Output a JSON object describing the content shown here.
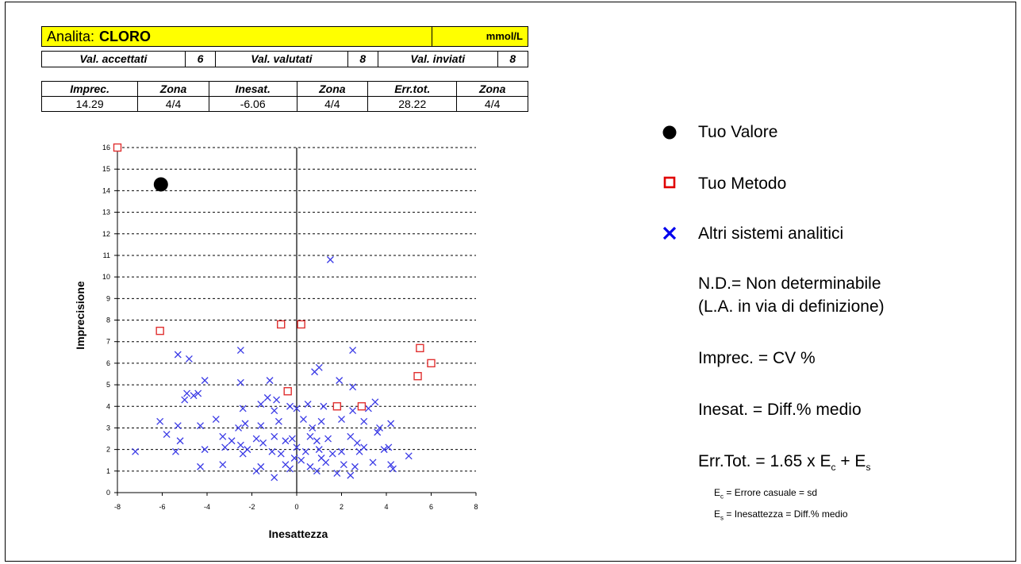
{
  "header": {
    "analyte_label": "Analita:",
    "analyte_name": "CLORO",
    "unit": "mmol/L",
    "counts": [
      {
        "label": "Val. accettati",
        "value": "6"
      },
      {
        "label": "Val. valutati",
        "value": "8"
      },
      {
        "label": "Val. inviati",
        "value": "8"
      }
    ],
    "metrics": {
      "headers": [
        "Imprec.",
        "Zona",
        "Inesat.",
        "Zona",
        "Err.tot.",
        "Zona"
      ],
      "values": [
        "14.29",
        "4/4",
        "-6.06",
        "4/4",
        "28.22",
        "4/4"
      ]
    }
  },
  "legend": {
    "your_value": "Tuo Valore",
    "your_method": "Tuo Metodo",
    "other_systems": "Altri sistemi analitici",
    "nd_line1": "N.D.= Non determinabile",
    "nd_line2": "(L.A. in via di definizione)",
    "imprec_def": "Imprec. = CV %",
    "inesat_def": "Inesat. = Diff.% medio",
    "errtot_prefix": "Err.Tot. = 1.65 x E",
    "errtot_sub1": "c",
    "errtot_mid": " + E",
    "errtot_sub2": "s",
    "ec_prefix": "E",
    "ec_sub": "c",
    "ec_def": " = Errore casuale = sd",
    "es_prefix": "E",
    "es_sub": "s",
    "es_def": " = Inesattezza = Diff.% medio"
  },
  "colors": {
    "highlight": "#ffff00",
    "your_method": "#e03030",
    "other_systems": "#3a3ae6",
    "your_value": "#000000"
  },
  "chart_data": {
    "type": "scatter",
    "xlabel": "Inesattezza",
    "ylabel": "Imprecisione",
    "xlim": [
      -8,
      8
    ],
    "ylim": [
      0,
      16
    ],
    "xticks": [
      -8,
      -6,
      -4,
      -2,
      0,
      2,
      4,
      6,
      8
    ],
    "yticks": [
      0,
      1,
      2,
      3,
      4,
      5,
      6,
      7,
      8,
      9,
      10,
      11,
      12,
      13,
      14,
      15,
      16
    ],
    "grid": "horizontal dashed",
    "series": [
      {
        "name": "Tuo Valore",
        "marker": "filled-circle",
        "points": [
          [
            -6.06,
            14.29
          ]
        ]
      },
      {
        "name": "Tuo Metodo",
        "marker": "open-square",
        "points": [
          [
            -8.0,
            16.0
          ],
          [
            -6.1,
            7.5
          ],
          [
            -0.7,
            7.8
          ],
          [
            0.2,
            7.8
          ],
          [
            -0.4,
            4.7
          ],
          [
            1.8,
            4.0
          ],
          [
            2.9,
            4.0
          ],
          [
            5.5,
            6.7
          ],
          [
            6.0,
            6.0
          ],
          [
            5.4,
            5.4
          ]
        ]
      },
      {
        "name": "Altri sistemi analitici",
        "marker": "x",
        "points": [
          [
            1.5,
            10.8
          ],
          [
            -2.5,
            6.6
          ],
          [
            2.5,
            6.6
          ],
          [
            -5.3,
            6.4
          ],
          [
            -4.8,
            6.2
          ],
          [
            1.0,
            5.8
          ],
          [
            0.8,
            5.6
          ],
          [
            -4.1,
            5.2
          ],
          [
            -1.2,
            5.2
          ],
          [
            1.9,
            5.2
          ],
          [
            -2.5,
            5.1
          ],
          [
            2.5,
            4.9
          ],
          [
            -4.9,
            4.6
          ],
          [
            -4.4,
            4.6
          ],
          [
            -4.6,
            4.5
          ],
          [
            -5.0,
            4.3
          ],
          [
            -1.3,
            4.4
          ],
          [
            -0.9,
            4.3
          ],
          [
            3.5,
            4.2
          ],
          [
            -1.6,
            4.1
          ],
          [
            -0.3,
            4.0
          ],
          [
            0.5,
            4.1
          ],
          [
            1.2,
            4.0
          ],
          [
            2.5,
            3.8
          ],
          [
            3.2,
            3.9
          ],
          [
            -2.4,
            3.9
          ],
          [
            -1.0,
            3.8
          ],
          [
            0.0,
            3.9
          ],
          [
            -6.1,
            3.3
          ],
          [
            -3.6,
            3.4
          ],
          [
            -2.3,
            3.2
          ],
          [
            -1.6,
            3.1
          ],
          [
            -0.8,
            3.3
          ],
          [
            0.3,
            3.4
          ],
          [
            1.1,
            3.3
          ],
          [
            2.0,
            3.4
          ],
          [
            3.0,
            3.3
          ],
          [
            4.2,
            3.2
          ],
          [
            -4.3,
            3.1
          ],
          [
            -5.3,
            3.1
          ],
          [
            -2.6,
            3.0
          ],
          [
            0.7,
            3.0
          ],
          [
            3.7,
            3.0
          ],
          [
            -5.8,
            2.7
          ],
          [
            -3.3,
            2.6
          ],
          [
            -1.8,
            2.5
          ],
          [
            -1.0,
            2.6
          ],
          [
            -0.2,
            2.5
          ],
          [
            0.6,
            2.6
          ],
          [
            1.4,
            2.5
          ],
          [
            2.4,
            2.6
          ],
          [
            3.6,
            2.8
          ],
          [
            -5.2,
            2.4
          ],
          [
            -2.9,
            2.4
          ],
          [
            -0.5,
            2.4
          ],
          [
            0.9,
            2.4
          ],
          [
            2.7,
            2.3
          ],
          [
            -2.5,
            2.2
          ],
          [
            -1.5,
            2.3
          ],
          [
            -7.2,
            1.9
          ],
          [
            -5.4,
            1.9
          ],
          [
            -4.1,
            2.0
          ],
          [
            -3.2,
            2.1
          ],
          [
            -2.2,
            2.0
          ],
          [
            -1.1,
            1.9
          ],
          [
            0.0,
            2.1
          ],
          [
            1.0,
            2.0
          ],
          [
            2.0,
            1.9
          ],
          [
            3.0,
            2.1
          ],
          [
            3.9,
            2.0
          ],
          [
            -2.4,
            1.8
          ],
          [
            -0.7,
            1.8
          ],
          [
            0.4,
            1.9
          ],
          [
            1.6,
            1.8
          ],
          [
            2.8,
            1.9
          ],
          [
            4.1,
            2.1
          ],
          [
            5.0,
            1.7
          ],
          [
            -4.3,
            1.2
          ],
          [
            -3.3,
            1.3
          ],
          [
            -1.6,
            1.2
          ],
          [
            -0.5,
            1.3
          ],
          [
            0.6,
            1.2
          ],
          [
            1.3,
            1.4
          ],
          [
            2.1,
            1.3
          ],
          [
            2.6,
            1.2
          ],
          [
            3.4,
            1.4
          ],
          [
            4.2,
            1.3
          ],
          [
            4.3,
            1.1
          ],
          [
            -1.8,
            1.0
          ],
          [
            -0.3,
            1.1
          ],
          [
            0.9,
            1.0
          ],
          [
            1.8,
            0.9
          ],
          [
            -1.0,
            0.7
          ],
          [
            2.4,
            0.8
          ],
          [
            -0.1,
            1.6
          ],
          [
            0.2,
            1.5
          ],
          [
            1.1,
            1.6
          ]
        ]
      }
    ]
  }
}
